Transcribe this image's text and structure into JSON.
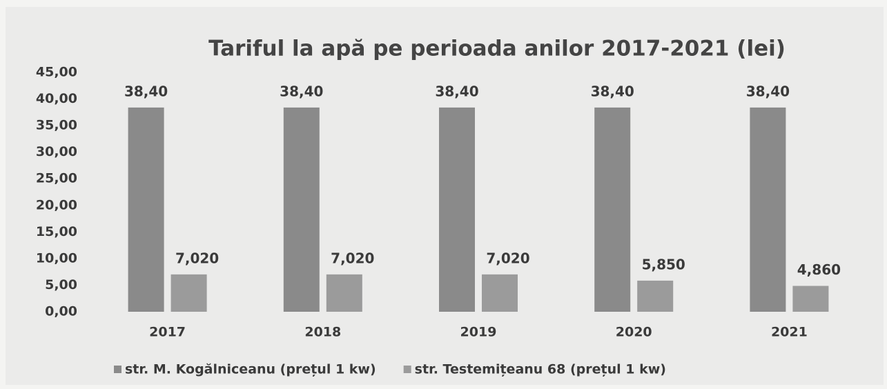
{
  "chart_data": {
    "type": "bar",
    "title": "Tariful la apă pe perioada anilor 2017-2021 (lei)",
    "categories": [
      "2017",
      "2018",
      "2019",
      "2020",
      "2021"
    ],
    "series": [
      {
        "name": "str. M. Kogălniceanu (prețul 1 kw)",
        "color": "#8a8a8a",
        "values": [
          38.4,
          38.4,
          38.4,
          38.4,
          38.4
        ],
        "value_labels": [
          "38,40",
          "38,40",
          "38,40",
          "38,40",
          "38,40"
        ]
      },
      {
        "name": "str. Testemițeanu 68 (prețul 1 kw)",
        "color": "#9b9b9b",
        "values": [
          7.02,
          7.02,
          7.02,
          5.85,
          4.86
        ],
        "value_labels": [
          "7,020",
          "7,020",
          "7,020",
          "5,850",
          "4,860"
        ]
      }
    ],
    "ylim": [
      0,
      45
    ],
    "yticks": [
      {
        "value": 0,
        "label": "0,00"
      },
      {
        "value": 5,
        "label": "5,00"
      },
      {
        "value": 10,
        "label": "10,00"
      },
      {
        "value": 15,
        "label": "15,00"
      },
      {
        "value": 20,
        "label": "20,00"
      },
      {
        "value": 25,
        "label": "25,00"
      },
      {
        "value": 30,
        "label": "30,00"
      },
      {
        "value": 35,
        "label": "35,00"
      },
      {
        "value": 40,
        "label": "40,00"
      },
      {
        "value": 45,
        "label": "45,00"
      }
    ],
    "legend": "bottom"
  }
}
